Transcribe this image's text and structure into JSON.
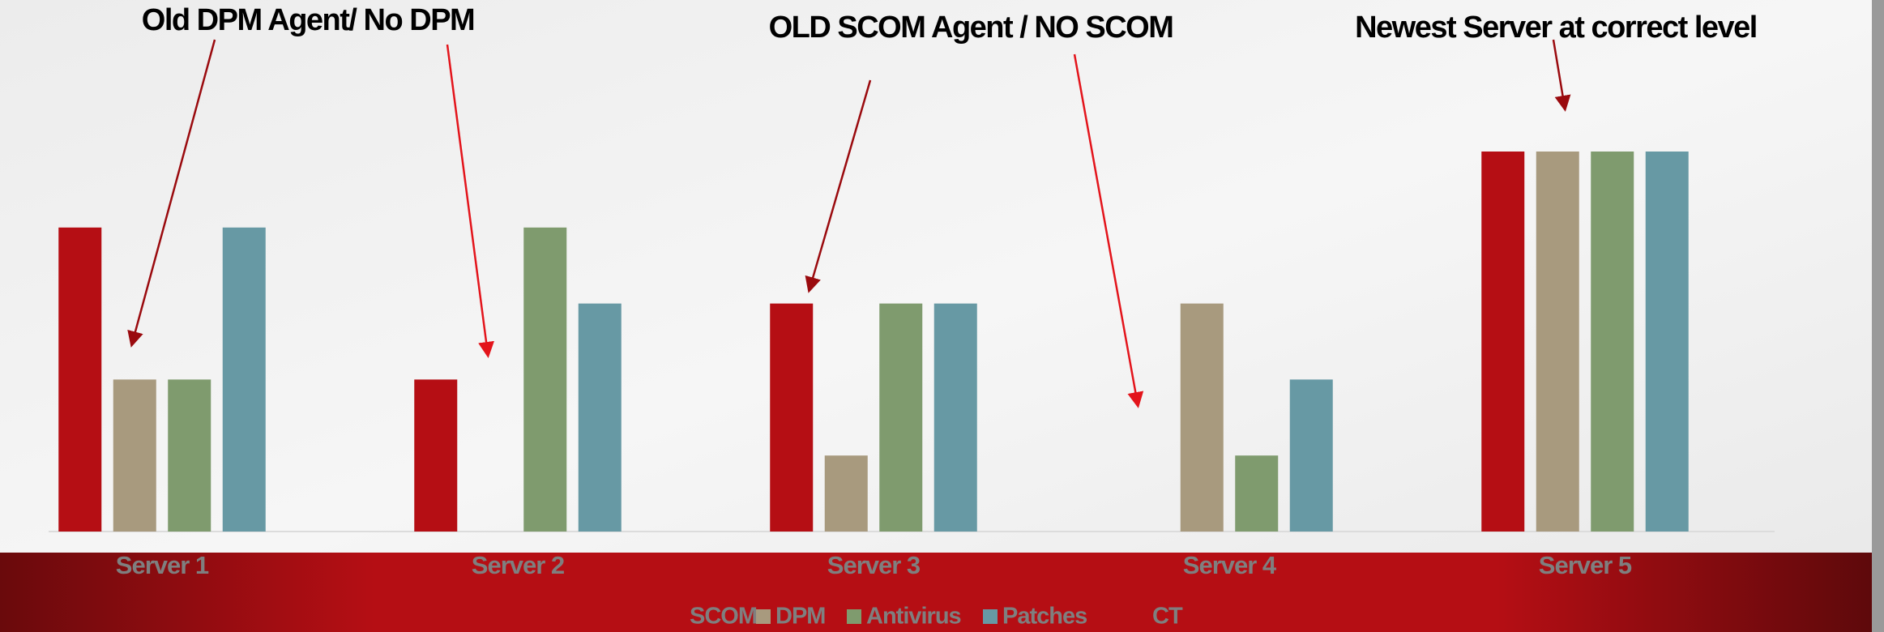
{
  "chart_data": {
    "type": "bar",
    "annotations": [
      "Old DPM Agent/ No DPM",
      "OLD SCOM Agent / NO SCOM",
      "Newest Server at correct level"
    ],
    "categories": [
      "Server 1",
      "Server 2",
      "Server 3",
      "Server 4",
      "Server 5"
    ],
    "series": [
      {
        "name": "SCOM",
        "color": "#b50e14",
        "values": [
          4,
          2,
          3,
          0,
          5
        ]
      },
      {
        "name": "DPM",
        "color": "#a89a7e",
        "values": [
          2,
          0,
          1,
          3,
          5
        ]
      },
      {
        "name": "Antivirus",
        "color": "#7f9b6e",
        "values": [
          2,
          4,
          3,
          1,
          5
        ]
      },
      {
        "name": "Patches",
        "color": "#6799a4",
        "values": [
          4,
          3,
          3,
          2,
          5
        ]
      },
      {
        "name": "CT",
        "color": "#b50e14",
        "values": [
          null,
          null,
          null,
          null,
          null
        ]
      }
    ],
    "ylim": [
      0,
      5
    ],
    "grid": false
  }
}
